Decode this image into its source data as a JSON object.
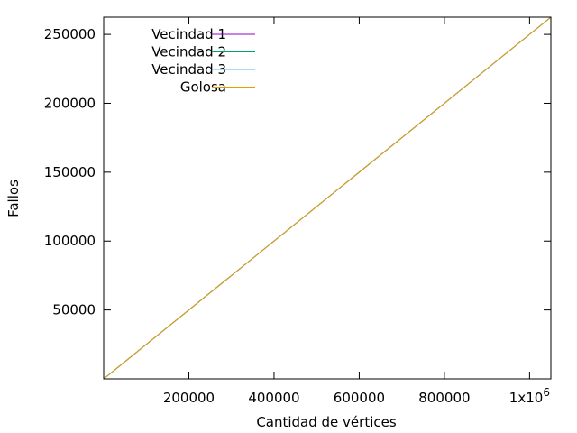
{
  "chart_data": {
    "type": "line",
    "title": "",
    "xlabel": "Cantidad de vértices",
    "ylabel": "Fallos",
    "xlim": [
      0,
      1050000
    ],
    "ylim": [
      0,
      262500
    ],
    "x_ticks": [
      {
        "value": 200000,
        "label": "200000"
      },
      {
        "value": 400000,
        "label": "400000"
      },
      {
        "value": 600000,
        "label": "600000"
      },
      {
        "value": 800000,
        "label": "800000"
      },
      {
        "value": 1000000,
        "label": "1x10",
        "sup": "6"
      }
    ],
    "y_ticks": [
      {
        "value": 50000,
        "label": "50000"
      },
      {
        "value": 100000,
        "label": "100000"
      },
      {
        "value": 150000,
        "label": "150000"
      },
      {
        "value": 200000,
        "label": "200000"
      },
      {
        "value": 250000,
        "label": "250000"
      }
    ],
    "grid": false,
    "legend_position": "top-left",
    "series": [
      {
        "name": "Vecindad 1",
        "color": "#9400d3",
        "x": [
          0,
          1050000
        ],
        "y": [
          0,
          262500
        ]
      },
      {
        "name": "Vecindad 2",
        "color": "#009e73",
        "x": [
          0,
          1050000
        ],
        "y": [
          0,
          262500
        ]
      },
      {
        "name": "Vecindad 3",
        "color": "#56b4e9",
        "x": [
          0,
          1050000
        ],
        "y": [
          0,
          262500
        ]
      },
      {
        "name": "Golosa",
        "color": "#e69f00",
        "x": [
          0,
          1050000
        ],
        "y": [
          0,
          262500
        ]
      }
    ]
  }
}
